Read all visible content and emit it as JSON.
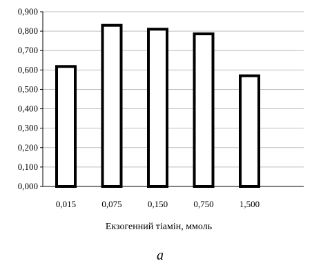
{
  "chart_data": {
    "type": "bar",
    "categories": [
      "0,015",
      "0,075",
      "0,150",
      "0,750",
      "1,500"
    ],
    "values": [
      0.618,
      0.83,
      0.81,
      0.786,
      0.57
    ],
    "y_ticks": [
      "0,000",
      "0,100",
      "0,200",
      "0,300",
      "0,400",
      "0,500",
      "0,600",
      "0,700",
      "0,800",
      "0,900"
    ],
    "ylim": [
      0,
      0.9
    ],
    "xlabel": "Екзогенний тіамін, ммоль",
    "ylabel": "",
    "title": "",
    "grid": true,
    "legend": "none",
    "bar_fill": "#ffffff",
    "bar_stroke": "#000000",
    "grid_color": "#bdbdbd"
  },
  "caption": "а"
}
